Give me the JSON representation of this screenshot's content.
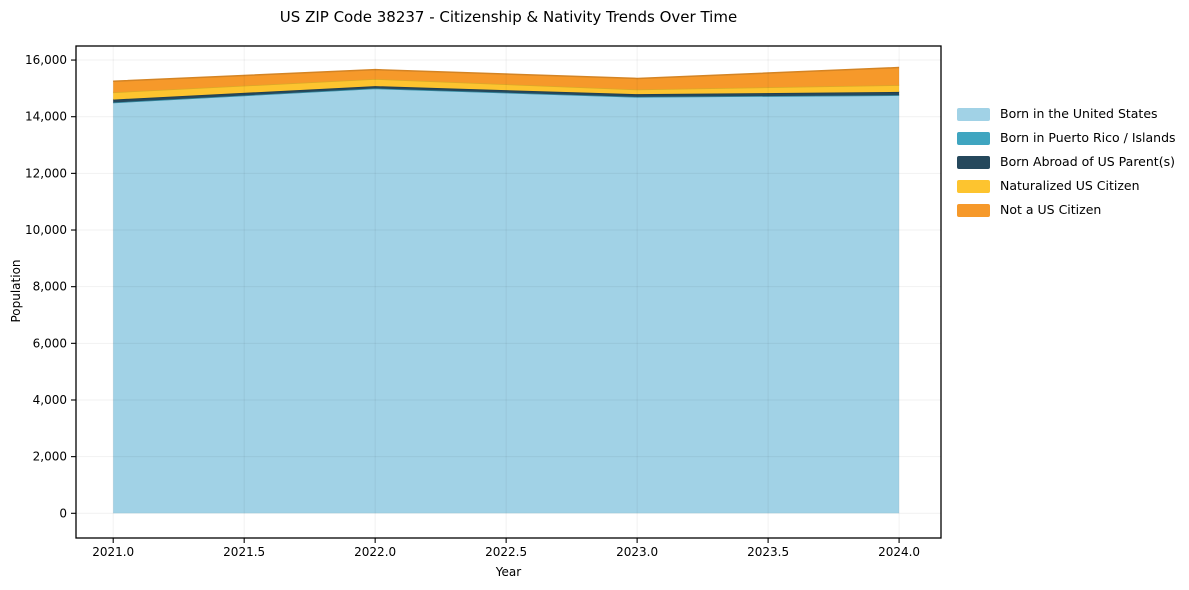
{
  "chart_data": {
    "type": "area",
    "stacked": true,
    "title": "US ZIP Code 38237 - Citizenship & Nativity Trends Over Time",
    "xlabel": "Year",
    "ylabel": "Population",
    "x": [
      2021,
      2022,
      2023,
      2024
    ],
    "series": [
      {
        "name": "Born in the United States",
        "color": "#a1d2e6",
        "values": [
          14500,
          15000,
          14700,
          14760
        ]
      },
      {
        "name": "Born in Puerto Rico / Islands",
        "color": "#3fa5c0",
        "values": [
          0,
          0,
          0,
          0
        ]
      },
      {
        "name": "Born Abroad of US Parent(s)",
        "color": "#25485c",
        "values": [
          105,
          80,
          95,
          115
        ]
      },
      {
        "name": "Naturalized US Citizen",
        "color": "#fdc42f",
        "values": [
          255,
          250,
          165,
          240
        ]
      },
      {
        "name": "Not a US Citizen",
        "color": "#f6992a",
        "values": [
          390,
          330,
          390,
          620
        ]
      }
    ],
    "stack_totals": [
      15250,
      15660,
      15350,
      15735
    ],
    "xlim": [
      2020.858,
      2024.16
    ],
    "ylim": [
      -872,
      16496
    ],
    "x_ticks": [
      {
        "v": 2021.0,
        "label": "2021.0"
      },
      {
        "v": 2021.5,
        "label": "2021.5"
      },
      {
        "v": 2022.0,
        "label": "2022.0"
      },
      {
        "v": 2022.5,
        "label": "2022.5"
      },
      {
        "v": 2023.0,
        "label": "2023.0"
      },
      {
        "v": 2023.5,
        "label": "2023.5"
      },
      {
        "v": 2024.0,
        "label": "2024.0"
      }
    ],
    "y_ticks": [
      {
        "v": 0,
        "label": "0"
      },
      {
        "v": 2000,
        "label": "2,000"
      },
      {
        "v": 4000,
        "label": "4,000"
      },
      {
        "v": 6000,
        "label": "6,000"
      },
      {
        "v": 8000,
        "label": "8,000"
      },
      {
        "v": 10000,
        "label": "10,000"
      },
      {
        "v": 12000,
        "label": "12,000"
      },
      {
        "v": 14000,
        "label": "14,000"
      },
      {
        "v": 16000,
        "label": "16,000"
      }
    ],
    "grid": true,
    "legend_position": "outside-right-top"
  }
}
